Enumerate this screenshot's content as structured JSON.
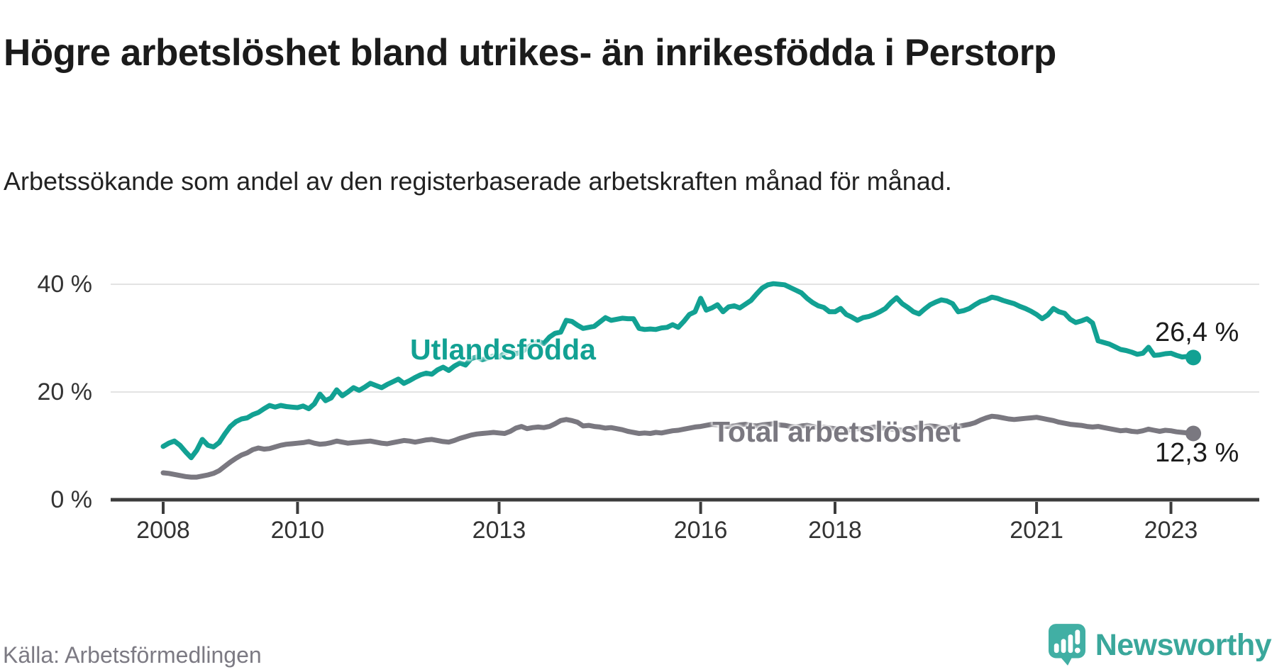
{
  "header": {
    "title": "Högre arbetslöshet bland utrikes- än inrikesfödda i Perstorp",
    "subtitle": "Arbetssökande som andel av den registerbaserade arbetskraften månad för månad."
  },
  "chart_data": {
    "type": "line",
    "title": "Högre arbetslöshet bland utrikes- än inrikesfödda i Perstorp",
    "subtitle": "Arbetssökande som andel av den registerbaserade arbetskraften månad för månad.",
    "unit": "%",
    "grid": "horizontal",
    "x": {
      "start_year": 2008,
      "start_month": 1,
      "end_year": 2023,
      "end_month": 5,
      "frequency": "monthly",
      "tick_years": [
        2008,
        2010,
        2013,
        2016,
        2018,
        2021,
        2023
      ]
    },
    "y": {
      "ticks": [
        0,
        20,
        40
      ],
      "tick_format": "{v} %",
      "lim": [
        0,
        44
      ]
    },
    "series": [
      {
        "name": "Utlandsfödda",
        "color": "#12a193",
        "end_label": "26,4 %",
        "end_value": 26.4,
        "values": [
          9.9,
          10.5,
          10.9,
          10.1,
          8.9,
          7.8,
          9.2,
          11.2,
          10.1,
          9.8,
          10.6,
          12.2,
          13.6,
          14.5,
          15.0,
          15.2,
          15.8,
          16.2,
          16.9,
          17.5,
          17.2,
          17.5,
          17.3,
          17.2,
          17.1,
          17.4,
          16.9,
          17.8,
          19.6,
          18.4,
          18.9,
          20.4,
          19.3,
          20.0,
          20.8,
          20.3,
          20.9,
          21.6,
          21.2,
          20.8,
          21.4,
          21.9,
          22.4,
          21.6,
          22.1,
          22.7,
          23.2,
          23.5,
          23.3,
          24.1,
          24.6,
          24.0,
          24.8,
          25.4,
          25.0,
          26.2,
          26.5,
          26.0,
          26.3,
          26.7,
          26.5,
          27.2,
          27.6,
          27.1,
          27.4,
          28.2,
          28.8,
          29.4,
          29.0,
          30.2,
          30.9,
          31.1,
          33.3,
          33.1,
          32.4,
          31.8,
          32.0,
          32.2,
          33.0,
          33.8,
          33.3,
          33.5,
          33.7,
          33.6,
          33.6,
          31.8,
          31.6,
          31.7,
          31.6,
          31.9,
          32.0,
          32.5,
          32.0,
          33.1,
          34.4,
          34.9,
          37.4,
          35.2,
          35.6,
          36.2,
          34.9,
          35.8,
          36.0,
          35.6,
          36.3,
          37.0,
          38.2,
          39.3,
          39.9,
          40.1,
          40.0,
          39.9,
          39.4,
          38.9,
          38.4,
          37.4,
          36.6,
          36.0,
          35.7,
          34.9,
          34.9,
          35.5,
          34.4,
          33.9,
          33.3,
          33.8,
          34.0,
          34.4,
          34.9,
          35.5,
          36.6,
          37.5,
          36.4,
          35.7,
          34.9,
          34.5,
          35.4,
          36.2,
          36.7,
          37.1,
          36.9,
          36.4,
          34.9,
          35.1,
          35.5,
          36.2,
          36.8,
          37.1,
          37.6,
          37.4,
          37.0,
          36.7,
          36.4,
          35.9,
          35.5,
          35.0,
          34.4,
          33.6,
          34.3,
          35.5,
          34.9,
          34.6,
          33.5,
          32.9,
          33.2,
          33.6,
          32.8,
          29.5,
          29.2,
          28.9,
          28.4,
          27.9,
          27.7,
          27.4,
          27.0,
          27.2,
          28.3,
          26.8,
          26.9,
          27.1,
          27.2,
          26.8,
          26.5,
          26.6,
          26.4
        ]
      },
      {
        "name": "Total arbetslöshet",
        "color": "#7a7880",
        "end_label": "12,3 %",
        "end_value": 12.3,
        "values": [
          5.0,
          4.9,
          4.7,
          4.5,
          4.3,
          4.2,
          4.2,
          4.4,
          4.6,
          4.9,
          5.4,
          6.2,
          7.0,
          7.7,
          8.3,
          8.7,
          9.3,
          9.6,
          9.4,
          9.5,
          9.8,
          10.1,
          10.3,
          10.4,
          10.5,
          10.6,
          10.8,
          10.5,
          10.3,
          10.4,
          10.6,
          10.9,
          10.7,
          10.5,
          10.6,
          10.7,
          10.8,
          10.9,
          10.7,
          10.5,
          10.4,
          10.6,
          10.8,
          11.0,
          10.9,
          10.7,
          10.9,
          11.1,
          11.2,
          11.0,
          10.8,
          10.7,
          11.0,
          11.4,
          11.7,
          12.0,
          12.2,
          12.3,
          12.4,
          12.5,
          12.4,
          12.3,
          12.7,
          13.3,
          13.6,
          13.2,
          13.4,
          13.5,
          13.4,
          13.6,
          14.1,
          14.7,
          14.9,
          14.7,
          14.4,
          13.7,
          13.8,
          13.6,
          13.5,
          13.3,
          13.4,
          13.2,
          13.0,
          12.7,
          12.5,
          12.3,
          12.4,
          12.3,
          12.5,
          12.4,
          12.6,
          12.8,
          12.9,
          13.1,
          13.3,
          13.5,
          13.6,
          13.8,
          14.0,
          13.9,
          13.7,
          13.6,
          13.7,
          13.9,
          14.0,
          13.8,
          13.7,
          13.9,
          14.0,
          14.1,
          13.9,
          13.8,
          13.6,
          13.5,
          13.7,
          13.8,
          13.6,
          13.4,
          13.5,
          13.3,
          13.2,
          13.0,
          12.9,
          13.0,
          13.2,
          13.1,
          13.3,
          13.5,
          13.4,
          13.2,
          13.1,
          13.0,
          12.9,
          13.1,
          13.3,
          13.5,
          13.6,
          13.7,
          13.6,
          13.4,
          13.3,
          13.5,
          13.6,
          13.8,
          14.0,
          14.3,
          14.8,
          15.2,
          15.5,
          15.4,
          15.2,
          15.0,
          14.9,
          15.0,
          15.1,
          15.2,
          15.3,
          15.1,
          14.9,
          14.7,
          14.4,
          14.2,
          14.0,
          13.9,
          13.8,
          13.6,
          13.5,
          13.6,
          13.4,
          13.2,
          13.0,
          12.8,
          12.9,
          12.7,
          12.6,
          12.8,
          13.1,
          12.9,
          12.7,
          12.9,
          12.8,
          12.6,
          12.5,
          12.4,
          12.3
        ]
      }
    ],
    "colors": {
      "grid": "#e3e3e3",
      "axis": "#3c3c3c",
      "tick_label": "#333333"
    }
  },
  "footer": {
    "source": "Källa: Arbetsförmedlingen",
    "brand": "Newsworthy",
    "brand_color": "#3aa79b",
    "brand_icon": "newsworthy-speech-bubble-chart-icon"
  }
}
